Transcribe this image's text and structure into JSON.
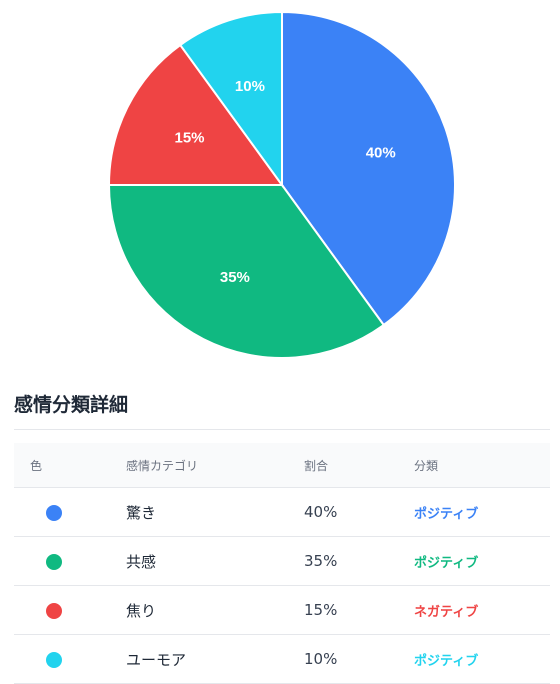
{
  "chart_data": {
    "type": "pie",
    "slices": [
      {
        "label": "驚き",
        "value": 40,
        "display": "40%",
        "color": "#3b82f6"
      },
      {
        "label": "共感",
        "value": 35,
        "display": "35%",
        "color": "#10b981"
      },
      {
        "label": "焦り",
        "value": 15,
        "display": "15%",
        "color": "#ef4444"
      },
      {
        "label": "ユーモア",
        "value": 10,
        "display": "10%",
        "color": "#22d3ee"
      }
    ],
    "start_angle_deg": 0,
    "direction": "clockwise"
  },
  "detail": {
    "title": "感情分類詳細",
    "headers": {
      "color": "色",
      "category": "感情カテゴリ",
      "ratio": "割合",
      "classification": "分類"
    },
    "rows": [
      {
        "color": "#3b82f6",
        "category": "驚き",
        "ratio": "40%",
        "classification": "ポジティブ",
        "class_color": "#3b82f6"
      },
      {
        "color": "#10b981",
        "category": "共感",
        "ratio": "35%",
        "classification": "ポジティブ",
        "class_color": "#10b981"
      },
      {
        "color": "#ef4444",
        "category": "焦り",
        "ratio": "15%",
        "classification": "ネガティブ",
        "class_color": "#ef4444"
      },
      {
        "color": "#22d3ee",
        "category": "ユーモア",
        "ratio": "10%",
        "classification": "ポジティブ",
        "class_color": "#22d3ee"
      }
    ]
  }
}
